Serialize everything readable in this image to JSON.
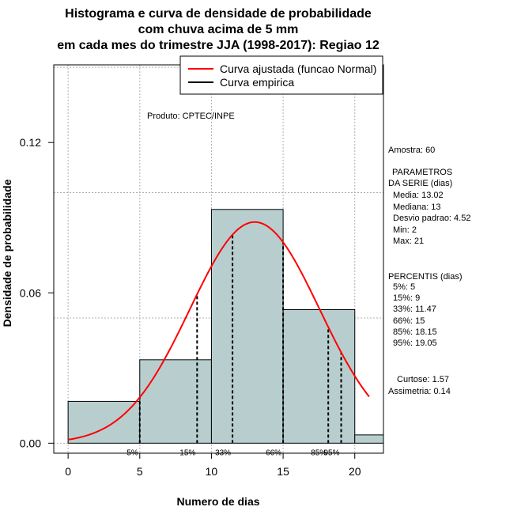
{
  "title": {
    "line1": "Histograma e curva de densidade de probabilidade",
    "line2": "com chuva acima de 5 mm",
    "line3": "em cada mes do trimestre JJA (1998-2017): Regiao 12"
  },
  "product_label": "Produto: CPTEC/INPE",
  "legend": {
    "fitted_label": "Curva ajustada (funcao Normal)",
    "empirical_label": "Curva empirica",
    "fitted_color": "#ff0000",
    "empirical_color": "#000000"
  },
  "stats": {
    "amostra": "Amostra: 60",
    "param_title": "PARAMETROS",
    "param_subtitle": "DA SERIE (dias)",
    "media": "Media: 13.02",
    "mediana": "Mediana: 13",
    "desvio": "Desvio padrao: 4.52",
    "min": "Min: 2",
    "max": "Max: 21",
    "percentis_title": "PERCENTIS (dias)",
    "p5": "5%: 5",
    "p15": "15%: 9",
    "p33": "33%: 11.47",
    "p66": "66%: 15",
    "p85": "85%: 18.15",
    "p95": "95%: 19.05",
    "curtose": "Curtose: 1.57",
    "assimetria": "Assimetria: 0.14"
  },
  "chart_data": {
    "type": "bar",
    "subtype": "histogram_with_density",
    "xlabel": "Numero de dias",
    "ylabel": "Densidade de probabilidade",
    "xlim": [
      -1,
      22
    ],
    "ylim": [
      -0.004,
      0.151
    ],
    "x_ticks": [
      0,
      5,
      10,
      15,
      20
    ],
    "x_tick_labels": [
      "0",
      "5",
      "10",
      "15",
      "20"
    ],
    "y_ticks": [
      0.0,
      0.06,
      0.12
    ],
    "y_tick_labels": [
      "0.00",
      "0.06",
      "0.12"
    ],
    "grid_y": [
      0.0,
      0.05,
      0.1,
      0.15
    ],
    "grid_x": [
      0,
      5,
      10,
      15,
      20
    ],
    "bar_color": "#b8cece",
    "bins": [
      {
        "start": 0,
        "end": 5,
        "density": 0.0167
      },
      {
        "start": 5,
        "end": 10,
        "density": 0.0333
      },
      {
        "start": 10,
        "end": 15,
        "density": 0.0933
      },
      {
        "start": 15,
        "end": 20,
        "density": 0.0533
      },
      {
        "start": 20,
        "end": 22,
        "density": 0.0033
      }
    ],
    "normal_fit": {
      "mean": 13.02,
      "sd": 4.52,
      "x_from": 0,
      "x_to": 21
    },
    "percentiles": [
      {
        "label": "5%",
        "value": 5
      },
      {
        "label": "15%",
        "value": 9
      },
      {
        "label": "33%",
        "value": 11.47
      },
      {
        "label": "66%",
        "value": 15
      },
      {
        "label": "85%",
        "value": 18.15
      },
      {
        "label": "95%",
        "value": 19.05
      }
    ]
  }
}
